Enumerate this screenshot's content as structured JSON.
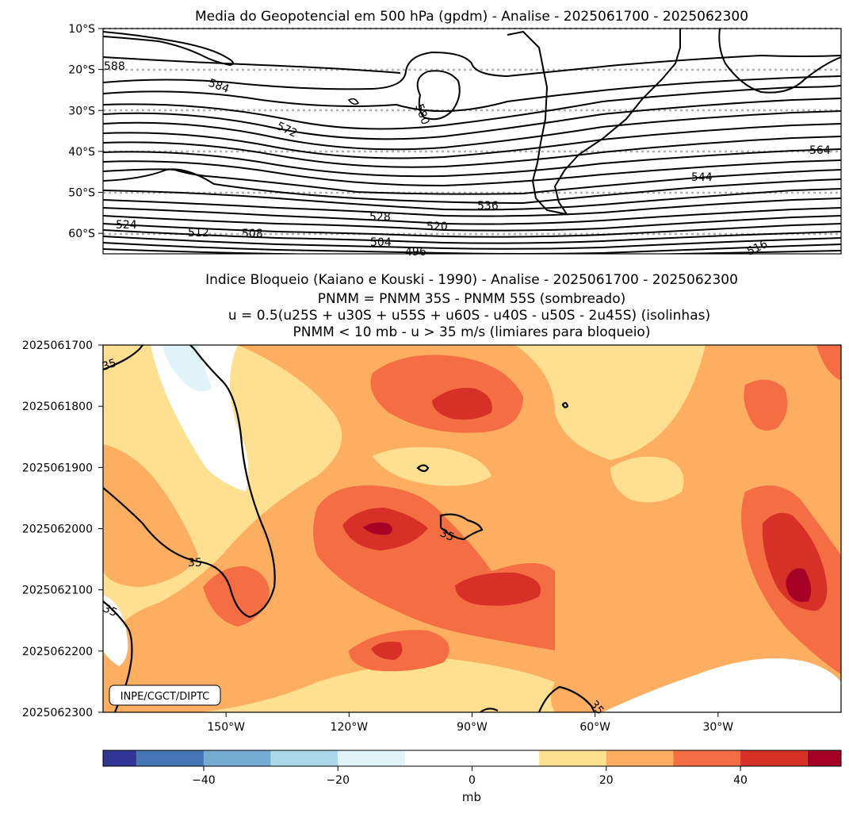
{
  "chart_data": [
    {
      "type": "contour",
      "title": "Media do Geopotencial em 500 hPa (gpdm) - Analise - 2025061700 - 2025062300",
      "ylim": [
        -65,
        -10
      ],
      "y_ticks": [
        -10,
        -20,
        -30,
        -40,
        -50,
        -60
      ],
      "y_tick_labels": [
        "10°S",
        "20°S",
        "30°S",
        "40°S",
        "50°S",
        "60°S"
      ],
      "gridlines": "dotted gray at 10° latitude steps",
      "contour_labels": [
        "588",
        "584",
        "572",
        "580",
        "564",
        "544",
        "536",
        "528",
        "520",
        "524",
        "512",
        "508",
        "504",
        "496",
        "516"
      ]
    },
    {
      "type": "filled_contour",
      "title": "Indice Bloqueio (Kaiano e Kouski - 1990) - Analise - 2025061700 - 2025062300",
      "subtitles": [
        "PNMM = PNMM 35S - PNMM 55S (sombreado)",
        "u = 0.5(u25S + u30S + u55S + u60S - u40S - u50S - 2u45S) (isolinhas)",
        "PNMM < 10 mb - u > 35 m/s (limiares para bloqueio)"
      ],
      "xlim": [
        -180,
        0
      ],
      "x_ticks": [
        -150,
        -120,
        -90,
        -60,
        -30
      ],
      "x_tick_labels": [
        "150°W",
        "120°W",
        "90°W",
        "60°W",
        "30°W"
      ],
      "y_tick_labels": [
        "2025061700",
        "2025061800",
        "2025061900",
        "2025062000",
        "2025062100",
        "2025062200",
        "2025062300"
      ],
      "isoline_label": "35",
      "isoline_labels": [
        "35",
        "35",
        "35",
        "35",
        "35"
      ],
      "watermark": "INPE/CGCT/DIPTC",
      "colorbar": {
        "levels": [
          -55,
          -50,
          -40,
          -30,
          -20,
          -10,
          10,
          20,
          30,
          40,
          50,
          55
        ],
        "colors": [
          "#313695",
          "#4575b4",
          "#74add1",
          "#abd9e9",
          "#e0f3f8",
          "#ffffff",
          "#fee090",
          "#fdae61",
          "#f46d43",
          "#d73027",
          "#a50026"
        ],
        "ticks": [
          -40,
          -20,
          0,
          20,
          40
        ],
        "tick_labels": [
          "−40",
          "−20",
          "0",
          "20",
          "40"
        ],
        "label": "mb"
      }
    }
  ]
}
